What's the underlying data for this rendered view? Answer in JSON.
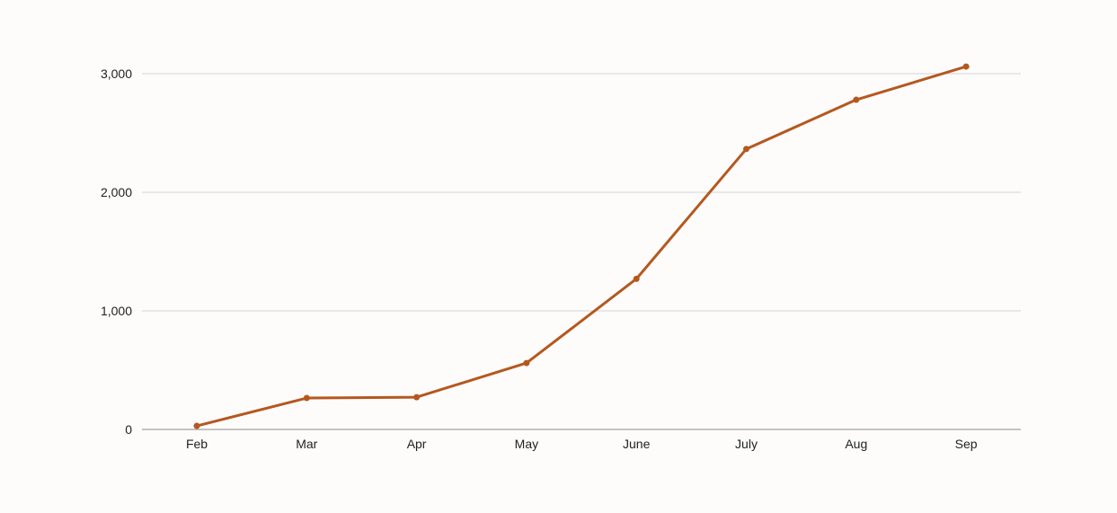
{
  "chart_data": {
    "type": "line",
    "categories": [
      "Feb",
      "Mar",
      "Apr",
      "May",
      "June",
      "July",
      "Aug",
      "Sep"
    ],
    "series": [
      {
        "values": [
          30,
          265,
          272,
          560,
          1270,
          2365,
          2780,
          3060
        ],
        "color": "#b5581f"
      }
    ],
    "y_ticks": [
      0,
      1000,
      2000,
      3000
    ],
    "y_tick_labels": [
      "0",
      "1,000",
      "2,000",
      "3,000"
    ],
    "ylim": [
      0,
      3000
    ],
    "grid": true,
    "legend": "none",
    "title": "",
    "xlabel": "",
    "ylabel": ""
  }
}
